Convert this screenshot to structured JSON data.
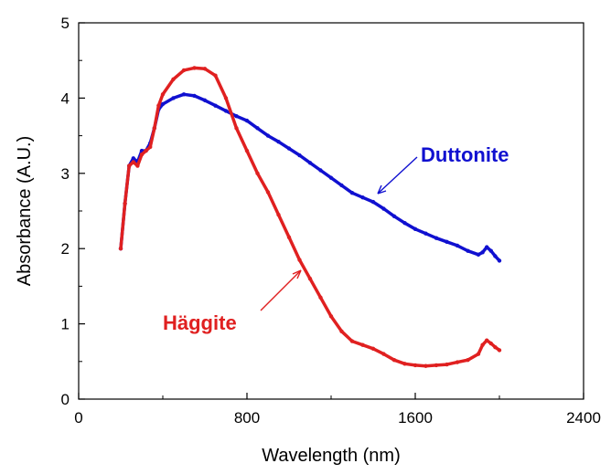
{
  "chart_data": {
    "type": "scatter",
    "title": "",
    "xlabel": "Wavelength (nm)",
    "ylabel": "Absorbance (A.U.)",
    "xlim": [
      0,
      2400
    ],
    "ylim": [
      0,
      5
    ],
    "xticks": [
      0,
      800,
      1600,
      2400
    ],
    "yticks": [
      0,
      1,
      2,
      3,
      4,
      5
    ],
    "grid": false,
    "legend": "none",
    "series": [
      {
        "name": "Duttonite",
        "color": "#1010d0",
        "x": [
          200,
          220,
          240,
          260,
          280,
          300,
          320,
          340,
          360,
          380,
          400,
          450,
          500,
          550,
          600,
          650,
          700,
          750,
          800,
          850,
          900,
          950,
          1000,
          1050,
          1100,
          1150,
          1200,
          1250,
          1300,
          1350,
          1400,
          1450,
          1500,
          1550,
          1600,
          1650,
          1700,
          1750,
          1800,
          1850,
          1900,
          1920,
          1940,
          1960,
          1980,
          2000
        ],
        "y": [
          2.0,
          2.6,
          3.1,
          3.2,
          3.15,
          3.3,
          3.3,
          3.4,
          3.6,
          3.85,
          3.92,
          4.0,
          4.05,
          4.03,
          3.97,
          3.9,
          3.83,
          3.76,
          3.7,
          3.6,
          3.5,
          3.42,
          3.33,
          3.24,
          3.14,
          3.04,
          2.94,
          2.84,
          2.74,
          2.68,
          2.62,
          2.53,
          2.43,
          2.34,
          2.26,
          2.2,
          2.14,
          2.09,
          2.04,
          1.97,
          1.92,
          1.95,
          2.02,
          1.97,
          1.9,
          1.84
        ]
      },
      {
        "name": "Häggite",
        "color": "#e02020",
        "x": [
          200,
          220,
          240,
          260,
          280,
          300,
          320,
          340,
          360,
          380,
          400,
          450,
          500,
          550,
          600,
          650,
          700,
          750,
          800,
          850,
          900,
          950,
          1000,
          1050,
          1100,
          1150,
          1200,
          1250,
          1300,
          1350,
          1400,
          1450,
          1500,
          1550,
          1600,
          1650,
          1700,
          1750,
          1800,
          1850,
          1900,
          1920,
          1940,
          1960,
          1980,
          2000
        ],
        "y": [
          2.0,
          2.6,
          3.1,
          3.15,
          3.1,
          3.25,
          3.3,
          3.35,
          3.6,
          3.9,
          4.05,
          4.25,
          4.37,
          4.4,
          4.39,
          4.3,
          4.0,
          3.6,
          3.3,
          3.0,
          2.75,
          2.45,
          2.15,
          1.85,
          1.6,
          1.35,
          1.1,
          0.9,
          0.77,
          0.72,
          0.67,
          0.6,
          0.52,
          0.47,
          0.45,
          0.44,
          0.45,
          0.46,
          0.49,
          0.52,
          0.6,
          0.72,
          0.78,
          0.74,
          0.69,
          0.65
        ]
      }
    ],
    "annotations": [
      {
        "text": "Duttonite",
        "series": 0,
        "color": "#1010d0"
      },
      {
        "text": "Häggite",
        "series": 1,
        "color": "#e02020"
      }
    ]
  }
}
